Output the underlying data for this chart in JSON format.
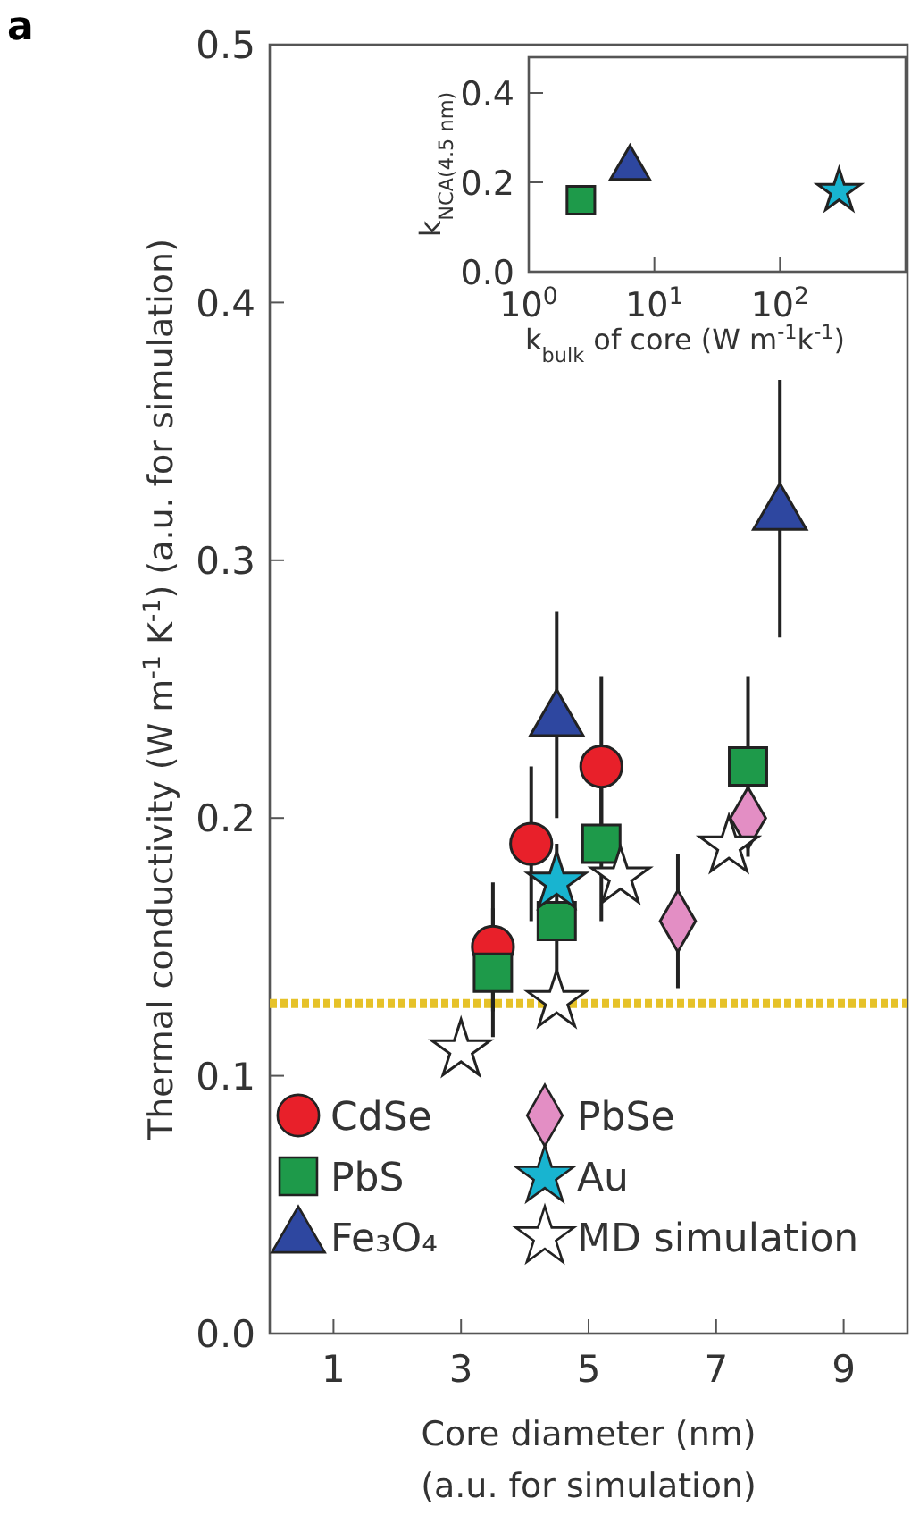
{
  "chart_data": [
    {
      "type": "scatter",
      "title": "a",
      "xlabel": "Core diameter (nm)\n(a.u. for simulation)",
      "ylabel": "Thermal conductivity (W m$^{-1}$ K$^{-1}$) (a.u. for simulation)",
      "xlim": [
        0,
        10
      ],
      "xticks": [
        1,
        3,
        5,
        7,
        9
      ],
      "ylim": [
        0,
        0.5
      ],
      "yticks": [
        {
          "value": 0,
          "label": "0.0"
        },
        {
          "value": 0.1,
          "label": "0.1"
        },
        {
          "value": 0.2,
          "label": "0.2"
        },
        {
          "value": 0.3,
          "label": "0.3"
        },
        {
          "value": 0.4,
          "label": "0.4"
        },
        {
          "value": 0.5,
          "label": "0.5"
        }
      ],
      "legend": "bottom left",
      "grid": false,
      "ref_lines": [
        {
          "axis": "y",
          "value": 0.128,
          "color": "#e6c229",
          "line_style": "dotted"
        }
      ],
      "series": [
        {
          "name": "CdSe",
          "color": "#e8202a",
          "marker": "circle",
          "x": [
            3.5,
            4.1,
            5.2
          ],
          "values": [
            0.15,
            0.19,
            0.22
          ],
          "errors": [
            0.025,
            0.03,
            0.035
          ]
        },
        {
          "name": "PbS",
          "color": "#1e9a4a",
          "marker": "square",
          "x": [
            3.5,
            4.5,
            5.2,
            7.5
          ],
          "values": [
            0.14,
            0.16,
            0.19,
            0.22
          ],
          "errors": [
            0.025,
            0.03,
            0.03,
            0.035
          ]
        },
        {
          "name": "Fe₃O₄",
          "color": "#2e47a0",
          "marker": "triangle",
          "x": [
            4.5,
            8.0
          ],
          "values": [
            0.24,
            0.32
          ],
          "errors": [
            0.04,
            0.05
          ]
        },
        {
          "name": "PbSe",
          "color": "#e38ec4",
          "marker": "diamond",
          "x": [
            6.4,
            7.5
          ],
          "values": [
            0.16,
            0.2
          ],
          "errors": [
            0.026,
            null
          ]
        },
        {
          "name": "Au",
          "color": "#18b4d0",
          "marker": "star",
          "x": [
            4.5
          ],
          "values": [
            0.175
          ]
        },
        {
          "name": "MD simulation",
          "color": "#ffffff",
          "marker": "star",
          "x": [
            3.0,
            4.5,
            5.5,
            7.2
          ],
          "values": [
            0.11,
            0.129,
            0.177,
            0.189
          ]
        }
      ]
    },
    {
      "type": "scatter",
      "xlabel": "k$_{bulk}$ of core (W m$^{-1}$k$^{-1}$)",
      "ylabel": "k$_{NCA(4.5 nm)}$",
      "log": "x",
      "xlim": [
        1,
        1000
      ],
      "xticks": [
        {
          "value": 1,
          "label": "10$^{0}$"
        },
        {
          "value": 10,
          "label": "10$^{1}$"
        },
        {
          "value": 100,
          "label": "10$^{2}$"
        }
      ],
      "ylim": [
        0,
        0.48
      ],
      "yticks": [
        {
          "value": 0,
          "label": "0.0"
        },
        {
          "value": 0.2,
          "label": "0.2"
        },
        {
          "value": 0.4,
          "label": "0.4"
        }
      ],
      "legend": false,
      "series": [
        {
          "color": "#1e9a4a",
          "marker": "square",
          "x": [
            2.6
          ],
          "values": [
            0.16
          ]
        },
        {
          "color": "#2e47a0",
          "marker": "triangle",
          "x": [
            6.4
          ],
          "values": [
            0.244
          ]
        },
        {
          "color": "#18b4d0",
          "marker": "star",
          "x": [
            295
          ],
          "values": [
            0.18
          ]
        }
      ]
    }
  ]
}
